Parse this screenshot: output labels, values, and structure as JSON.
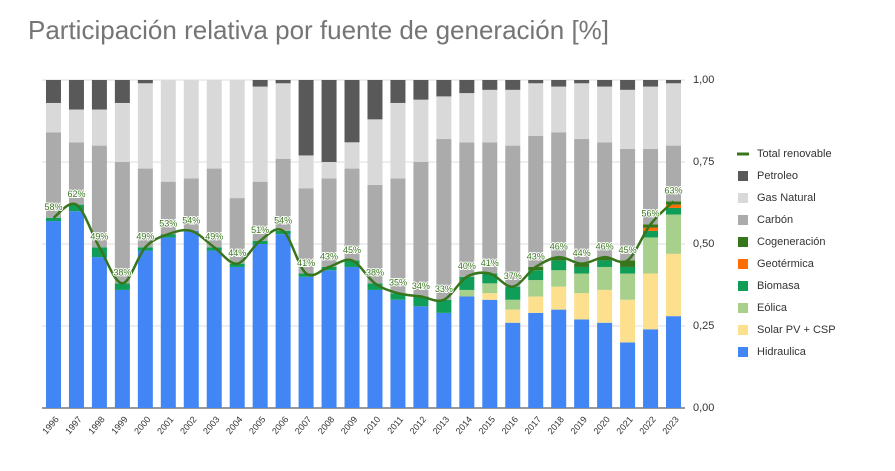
{
  "chart_data": {
    "type": "stacked_bar_line",
    "title": "Participación relativa por fuente de generación [%]",
    "categories": [
      "1996",
      "1997",
      "1998",
      "1999",
      "2000",
      "2001",
      "2002",
      "2003",
      "2004",
      "2005",
      "2006",
      "2007",
      "2008",
      "2009",
      "2010",
      "2011",
      "2012",
      "2013",
      "2014",
      "2015",
      "2016",
      "2017",
      "2018",
      "2019",
      "2020",
      "2021",
      "2022",
      "2023"
    ],
    "ylim": [
      0,
      1
    ],
    "yticks": [
      {
        "value": 0,
        "label": "0,00"
      },
      {
        "value": 0.25,
        "label": "0,25"
      },
      {
        "value": 0.5,
        "label": "0,50"
      },
      {
        "value": 0.75,
        "label": "0,75"
      },
      {
        "value": 1,
        "label": "1,00"
      }
    ],
    "grid": true,
    "legend": "right",
    "series": [
      {
        "name": "Hidraulica",
        "color": "#4285f4",
        "values": [
          0.57,
          0.6,
          0.46,
          0.36,
          0.48,
          0.52,
          0.54,
          0.48,
          0.43,
          0.5,
          0.53,
          0.4,
          0.42,
          0.43,
          0.36,
          0.33,
          0.31,
          0.29,
          0.34,
          0.33,
          0.26,
          0.29,
          0.3,
          0.27,
          0.26,
          0.2,
          0.24,
          0.28
        ]
      },
      {
        "name": "Solar PV + CSP",
        "color": "#fde08e",
        "values": [
          0,
          0,
          0,
          0,
          0,
          0,
          0,
          0,
          0,
          0,
          0,
          0,
          0,
          0,
          0,
          0,
          0,
          0,
          0,
          0.02,
          0.04,
          0.05,
          0.07,
          0.08,
          0.1,
          0.13,
          0.17,
          0.19
        ]
      },
      {
        "name": "Eólica",
        "color": "#a8d08d",
        "values": [
          0,
          0,
          0,
          0,
          0,
          0,
          0,
          0,
          0,
          0,
          0,
          0,
          0,
          0,
          0,
          0,
          0,
          0,
          0.02,
          0.03,
          0.03,
          0.05,
          0.05,
          0.06,
          0.07,
          0.08,
          0.11,
          0.12
        ]
      },
      {
        "name": "Biomasa",
        "color": "#0f9d58",
        "values": [
          0.01,
          0.02,
          0.03,
          0.02,
          0.01,
          0.01,
          0,
          0.01,
          0.01,
          0.01,
          0.01,
          0.01,
          0.01,
          0.02,
          0.02,
          0.02,
          0.03,
          0.04,
          0.04,
          0.03,
          0.04,
          0.03,
          0.03,
          0.02,
          0.02,
          0.02,
          0.02,
          0.02
        ]
      },
      {
        "name": "Geotérmica",
        "color": "#ff6d01",
        "values": [
          0,
          0,
          0,
          0,
          0,
          0,
          0,
          0,
          0,
          0,
          0,
          0,
          0,
          0,
          0,
          0,
          0,
          0,
          0,
          0,
          0,
          0,
          0,
          0,
          0,
          0,
          0.01,
          0.01
        ]
      },
      {
        "name": "Cogeneración",
        "color": "#38761d",
        "values": [
          0,
          0,
          0,
          0,
          0,
          0,
          0,
          0,
          0,
          0,
          0,
          0,
          0,
          0,
          0,
          0,
          0,
          0,
          0,
          0,
          0,
          0.01,
          0.01,
          0.01,
          0.01,
          0.02,
          0.01,
          0.01
        ]
      },
      {
        "name": "Carbón",
        "color": "#ababab",
        "values": [
          0.26,
          0.19,
          0.31,
          0.37,
          0.24,
          0.16,
          0.16,
          0.24,
          0.2,
          0.18,
          0.22,
          0.26,
          0.27,
          0.28,
          0.3,
          0.35,
          0.41,
          0.49,
          0.41,
          0.4,
          0.43,
          0.4,
          0.38,
          0.38,
          0.35,
          0.34,
          0.23,
          0.17
        ]
      },
      {
        "name": "Gas Natural",
        "color": "#d9d9d9",
        "values": [
          0.09,
          0.1,
          0.11,
          0.18,
          0.26,
          0.31,
          0.3,
          0.27,
          0.36,
          0.29,
          0.23,
          0.1,
          0.05,
          0.08,
          0.2,
          0.23,
          0.19,
          0.13,
          0.15,
          0.16,
          0.17,
          0.16,
          0.14,
          0.17,
          0.17,
          0.18,
          0.19,
          0.19
        ]
      },
      {
        "name": "Petroleo",
        "color": "#595959",
        "values": [
          0.07,
          0.09,
          0.09,
          0.07,
          0.01,
          0,
          0,
          0,
          0,
          0.02,
          0.01,
          0.23,
          0.25,
          0.19,
          0.12,
          0.07,
          0.06,
          0.05,
          0.04,
          0.03,
          0.03,
          0.01,
          0.02,
          0.01,
          0.02,
          0.03,
          0.02,
          0.01
        ]
      }
    ],
    "line": {
      "name": "Total renovable",
      "color": "#38761d",
      "values": [
        0.58,
        0.62,
        0.49,
        0.38,
        0.49,
        0.53,
        0.54,
        0.49,
        0.44,
        0.51,
        0.54,
        0.41,
        0.43,
        0.45,
        0.38,
        0.35,
        0.34,
        0.33,
        0.4,
        0.41,
        0.37,
        0.43,
        0.46,
        0.44,
        0.46,
        0.45,
        0.56,
        0.63
      ],
      "value_labels": [
        "58%",
        "62%",
        "49%",
        "38%",
        "49%",
        "53%",
        "54%",
        "49%",
        "44%",
        "51%",
        "54%",
        "41%",
        "43%",
        "45%",
        "38%",
        "35%",
        "34%",
        "33%",
        "40%",
        "41%",
        "37%",
        "43%",
        "46%",
        "44%",
        "46%",
        "45%",
        "56%",
        "63%"
      ]
    }
  }
}
